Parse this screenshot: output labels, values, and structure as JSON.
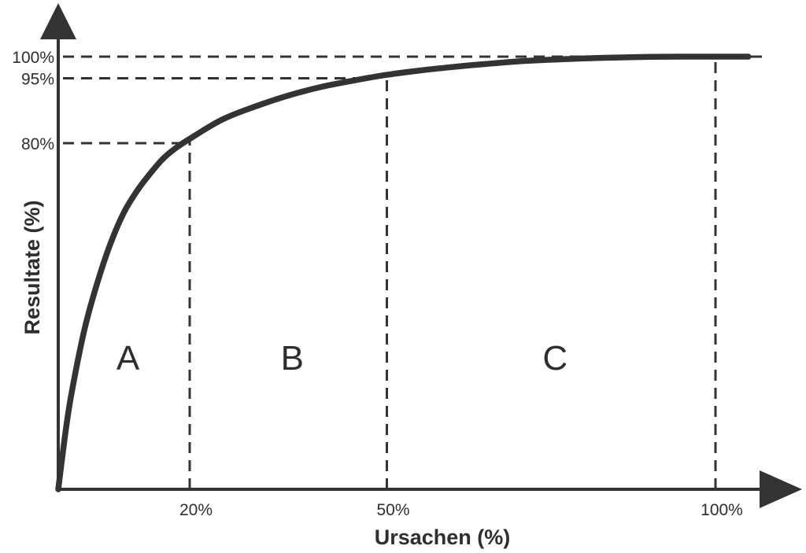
{
  "chart_data": {
    "type": "line",
    "xlabel": "Ursachen (%)",
    "ylabel": "Resultate (%)",
    "xlim": [
      0,
      100
    ],
    "ylim": [
      0,
      100
    ],
    "x_ticks": [
      {
        "value": 20,
        "label": "20%"
      },
      {
        "value": 50,
        "label": "50%"
      },
      {
        "value": 100,
        "label": "100%"
      }
    ],
    "y_ticks": [
      {
        "value": 80,
        "label": "80%"
      },
      {
        "value": 95,
        "label": "95%"
      },
      {
        "value": 100,
        "label": "100%"
      }
    ],
    "series": [
      {
        "x": [
          0,
          1,
          2,
          4,
          6,
          8,
          10,
          12,
          14,
          16,
          18,
          20,
          25,
          30,
          35,
          40,
          45,
          50,
          55,
          60,
          65,
          70,
          75,
          80,
          85,
          90,
          95,
          100,
          105
        ],
        "y": [
          0,
          12,
          22,
          37,
          48,
          57,
          64,
          69,
          73,
          76.5,
          79,
          81,
          85.5,
          88.5,
          91,
          93,
          94.5,
          95.8,
          96.8,
          97.6,
          98.3,
          98.9,
          99.3,
          99.6,
          99.8,
          99.95,
          100,
          100,
          100
        ]
      }
    ],
    "regions": [
      {
        "label": "A",
        "from": 0,
        "to": 20
      },
      {
        "label": "B",
        "from": 20,
        "to": 50
      },
      {
        "label": "C",
        "from": 50,
        "to": 100
      }
    ],
    "grid": false
  }
}
